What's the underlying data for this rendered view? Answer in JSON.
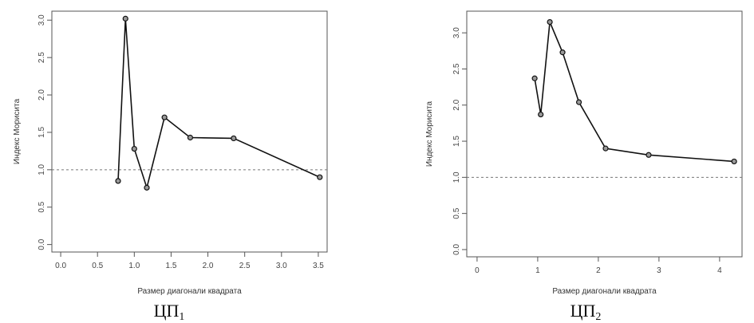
{
  "chart_data": [
    {
      "type": "line",
      "xlabel": "Размер диагонали квадрата",
      "ylabel": "Индекс Мориситa",
      "xlim": [
        -0.12,
        3.62
      ],
      "ylim": [
        -0.1,
        3.12
      ],
      "xticks": [
        "0.0",
        "0.5",
        "1.0",
        "1.5",
        "2.0",
        "2.5",
        "3.0",
        "3.5"
      ],
      "yticks": [
        "0.0",
        "0.5",
        "1.0",
        "1.5",
        "2.0",
        "2.5",
        "3.0"
      ],
      "reference_line": 1.0,
      "series": [
        {
          "x": [
            0.78,
            0.88,
            1.0,
            1.17,
            1.41,
            1.76,
            2.35,
            3.52
          ],
          "y": [
            0.85,
            3.02,
            1.28,
            0.76,
            1.7,
            1.43,
            1.42,
            0.9
          ]
        }
      ],
      "caption": {
        "main": "ЦП",
        "sub": "1"
      }
    },
    {
      "type": "line",
      "xlabel": "Размер диагонали квадрата",
      "ylabel": "Индекс Мориситa",
      "xlim": [
        -0.17,
        4.37
      ],
      "ylim": [
        -0.1,
        3.3
      ],
      "xticks": [
        "0",
        "1",
        "2",
        "3",
        "4"
      ],
      "yticks": [
        "0.0",
        "0.5",
        "1.0",
        "1.5",
        "2.0",
        "2.5",
        "3.0"
      ],
      "reference_line": 1.0,
      "series": [
        {
          "x": [
            0.95,
            1.05,
            1.2,
            1.41,
            1.68,
            2.12,
            2.83,
            4.24
          ],
          "y": [
            2.37,
            1.87,
            3.15,
            2.73,
            2.04,
            1.4,
            1.31,
            1.22
          ]
        }
      ],
      "caption": {
        "main": "ЦП",
        "sub": "2"
      }
    }
  ]
}
